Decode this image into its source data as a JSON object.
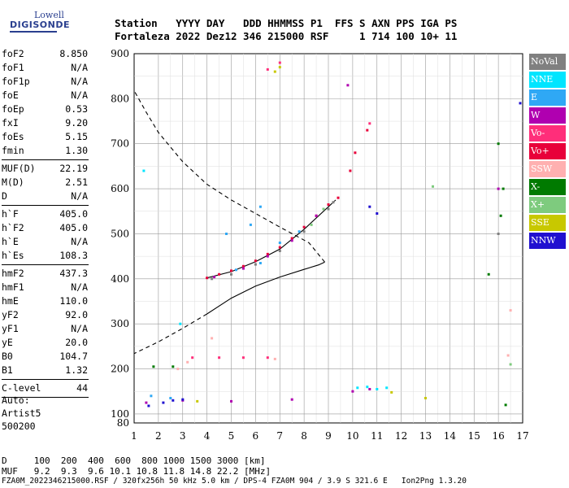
{
  "logo": {
    "line1": "Lowell",
    "line2": "DIGISONDE"
  },
  "header": {
    "line1": "Station   YYYY DAY   DDD HHMMSS P1  FFS S AXN PPS IGA PS",
    "line2": "Fortaleza 2022 Dez12 346 215000 RSF     1 714 100 10+ 11"
  },
  "params_group1": [
    {
      "name": "foF2",
      "value": "8.850"
    },
    {
      "name": "foF1",
      "value": "N/A"
    },
    {
      "name": "foF1p",
      "value": "N/A"
    },
    {
      "name": "foE",
      "value": "N/A"
    },
    {
      "name": "foEp",
      "value": "0.53"
    },
    {
      "name": "fxI",
      "value": "9.20"
    },
    {
      "name": "foEs",
      "value": "5.15"
    },
    {
      "name": "fmin",
      "value": "1.30"
    }
  ],
  "params_group2": [
    {
      "name": "MUF(D)",
      "value": "22.19"
    },
    {
      "name": "M(D)",
      "value": "2.51"
    },
    {
      "name": "D",
      "value": "N/A"
    }
  ],
  "params_group3": [
    {
      "name": "h`F",
      "value": "405.0"
    },
    {
      "name": "h`F2",
      "value": "405.0"
    },
    {
      "name": "h`E",
      "value": "N/A"
    },
    {
      "name": "h`Es",
      "value": "108.3"
    }
  ],
  "params_group4": [
    {
      "name": "hmF2",
      "value": "437.3"
    },
    {
      "name": "hmF1",
      "value": "N/A"
    },
    {
      "name": "hmE",
      "value": "110.0"
    },
    {
      "name": "yF2",
      "value": "92.0"
    },
    {
      "name": "yF1",
      "value": "N/A"
    },
    {
      "name": "yE",
      "value": "20.0"
    },
    {
      "name": "B0",
      "value": "104.7"
    },
    {
      "name": "B1",
      "value": "1.32"
    }
  ],
  "params_group5": [
    {
      "name": "C-level",
      "value": "44"
    }
  ],
  "auto": {
    "line1": "Auto:",
    "line2": "Artist5",
    "line3": "500200"
  },
  "footer": {
    "d_row": "D     100  200  400  600  800 1000 1500 3000 [km]",
    "muf_row": "MUF   9.2  9.3  9.6 10.1 10.8 11.8 14.8 22.2 [MHz]",
    "file_row": "FZA0M_2022346215000.RSF / 320fx256h 50 kHz 5.0 km / DPS-4 FZA0M 904 / 3.9 S 321.6 E   Ion2Png 1.3.20"
  },
  "legend": [
    {
      "label": "NoVal",
      "color": "#808080"
    },
    {
      "label": "NNE",
      "color": "#00e5ff"
    },
    {
      "label": "E",
      "color": "#2fa8f5"
    },
    {
      "label": "W",
      "color": "#b000b0"
    },
    {
      "label": "Vo-",
      "color": "#ff2e7a"
    },
    {
      "label": "Vo+",
      "color": "#e8003a"
    },
    {
      "label": "SSW",
      "color": "#ffb0b0"
    },
    {
      "label": "X-",
      "color": "#007a00"
    },
    {
      "label": "X+",
      "color": "#7ecb7e"
    },
    {
      "label": "SSE",
      "color": "#c8c800"
    },
    {
      "label": "NNW",
      "color": "#2010d0"
    }
  ],
  "chart_data": {
    "type": "scatter",
    "xlabel": "",
    "ylabel": "",
    "xlim": [
      1,
      17
    ],
    "ylim": [
      80,
      900
    ],
    "x_ticks": [
      1,
      2,
      3,
      4,
      5,
      6,
      7,
      8,
      9,
      10,
      11,
      12,
      13,
      14,
      15,
      16,
      17
    ],
    "y_ticks": [
      80,
      100,
      200,
      300,
      400,
      500,
      600,
      700,
      800,
      900
    ],
    "grid": true,
    "series": [
      {
        "name": "Vo+",
        "points": [
          [
            4.0,
            402
          ],
          [
            4.5,
            410
          ],
          [
            5.0,
            418
          ],
          [
            5.5,
            428
          ],
          [
            6.0,
            440
          ],
          [
            6.5,
            455
          ],
          [
            7.0,
            470
          ],
          [
            7.5,
            490
          ],
          [
            8.0,
            515
          ],
          [
            8.5,
            540
          ],
          [
            9.0,
            565
          ],
          [
            9.4,
            580
          ],
          [
            9.9,
            640
          ],
          [
            10.1,
            680
          ],
          [
            10.6,
            730
          ]
        ]
      },
      {
        "name": "W",
        "points": [
          [
            4.3,
            404
          ],
          [
            5.5,
            423
          ],
          [
            6.5,
            450
          ],
          [
            7.5,
            485
          ],
          [
            8.5,
            540
          ],
          [
            1.5,
            125
          ],
          [
            3.0,
            130
          ],
          [
            5.0,
            128
          ],
          [
            7.5,
            132
          ],
          [
            10.0,
            150
          ],
          [
            10.7,
            155
          ],
          [
            9.8,
            830
          ],
          [
            16.0,
            600
          ]
        ]
      },
      {
        "name": "E",
        "points": [
          [
            4.8,
            500
          ],
          [
            5.8,
            520
          ],
          [
            6.2,
            560
          ],
          [
            7.0,
            480
          ],
          [
            7.8,
            505
          ],
          [
            5.2,
            420
          ],
          [
            6.2,
            435
          ],
          [
            1.7,
            140
          ],
          [
            2.5,
            135
          ]
        ]
      },
      {
        "name": "NNE",
        "points": [
          [
            10.2,
            158
          ],
          [
            10.6,
            160
          ],
          [
            11.0,
            155
          ],
          [
            11.4,
            158
          ],
          [
            1.4,
            640
          ],
          [
            2.9,
            300
          ]
        ]
      },
      {
        "name": "NNW",
        "points": [
          [
            1.6,
            118
          ],
          [
            2.2,
            125
          ],
          [
            2.6,
            130
          ],
          [
            3.0,
            132
          ],
          [
            10.7,
            560
          ],
          [
            11.0,
            545
          ],
          [
            16.9,
            790
          ]
        ]
      },
      {
        "name": "X-",
        "points": [
          [
            1.8,
            205
          ],
          [
            2.6,
            205
          ],
          [
            16.0,
            700
          ],
          [
            16.1,
            540
          ],
          [
            16.2,
            600
          ],
          [
            15.6,
            410
          ],
          [
            16.3,
            120
          ]
        ]
      },
      {
        "name": "Vo-",
        "points": [
          [
            3.4,
            225
          ],
          [
            4.5,
            225
          ],
          [
            5.5,
            225
          ],
          [
            6.5,
            225
          ],
          [
            7.0,
            880
          ],
          [
            6.5,
            865
          ],
          [
            10.7,
            745
          ]
        ]
      },
      {
        "name": "SSW",
        "points": [
          [
            2.8,
            200
          ],
          [
            3.2,
            215
          ],
          [
            6.8,
            222
          ],
          [
            16.4,
            230
          ],
          [
            16.5,
            330
          ],
          [
            4.2,
            268
          ]
        ]
      },
      {
        "name": "SSE",
        "points": [
          [
            7.0,
            870
          ],
          [
            6.8,
            860
          ],
          [
            3.6,
            128
          ],
          [
            11.6,
            148
          ],
          [
            13.0,
            135
          ]
        ]
      },
      {
        "name": "X+",
        "points": [
          [
            8.3,
            520
          ],
          [
            8.8,
            555
          ],
          [
            16.5,
            210
          ],
          [
            13.3,
            605
          ]
        ]
      },
      {
        "name": "NoVal",
        "points": [
          [
            4.2,
            400
          ],
          [
            5.0,
            410
          ],
          [
            6.0,
            432
          ],
          [
            7.0,
            462
          ],
          [
            8.0,
            505
          ],
          [
            9.0,
            555
          ],
          [
            9.2,
            570
          ],
          [
            16.0,
            500
          ]
        ]
      }
    ],
    "curves": [
      {
        "name": "trace",
        "style": "solid",
        "points": [
          [
            4.0,
            402
          ],
          [
            5.0,
            416
          ],
          [
            6.0,
            438
          ],
          [
            7.0,
            466
          ],
          [
            8.0,
            510
          ],
          [
            9.0,
            560
          ],
          [
            9.3,
            575
          ]
        ]
      },
      {
        "name": "profile-solid",
        "style": "solid",
        "points": [
          [
            4.0,
            322
          ],
          [
            5.0,
            357
          ],
          [
            6.0,
            384
          ],
          [
            7.0,
            404
          ],
          [
            8.0,
            421
          ],
          [
            8.6,
            431
          ],
          [
            8.85,
            437.3
          ]
        ]
      },
      {
        "name": "profile-dashed-upper",
        "style": "dashed",
        "points": [
          [
            8.85,
            437.3
          ],
          [
            8.2,
            480
          ],
          [
            7.0,
            515
          ],
          [
            6.0,
            545
          ],
          [
            5.0,
            575
          ],
          [
            4.0,
            610
          ],
          [
            3.0,
            660
          ],
          [
            2.0,
            725
          ],
          [
            1.5,
            770
          ],
          [
            1.0,
            818
          ]
        ]
      },
      {
        "name": "profile-dashed-lower",
        "style": "dashed",
        "points": [
          [
            4.0,
            322
          ],
          [
            3.0,
            290
          ],
          [
            2.0,
            260
          ],
          [
            1.0,
            234
          ]
        ]
      }
    ]
  }
}
